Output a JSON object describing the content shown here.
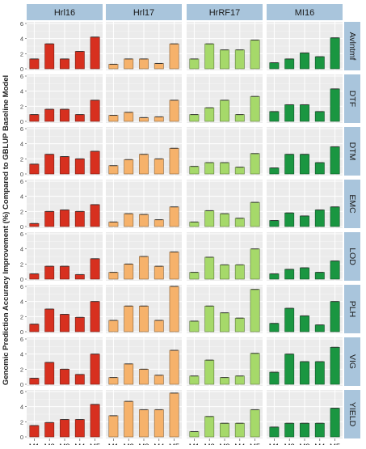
{
  "chart_data": {
    "type": "bar",
    "ylabel": "Genomic Prediction Accuracy Improvement (%) Compared to GBLUP Baseline Model",
    "xlabel": "",
    "ylim": [
      0,
      6
    ],
    "yticks": [
      0,
      2,
      4,
      6
    ],
    "categories": [
      "M1",
      "M2",
      "M3",
      "M4",
      "M5"
    ],
    "columns": [
      "Hrl16",
      "Hrl17",
      "HrRF17",
      "MI16"
    ],
    "rows": [
      "Avlntmf",
      "DTF",
      "DTM",
      "EMC",
      "LOD",
      "PLH",
      "VIG",
      "YIELD"
    ],
    "column_colors": [
      "#d7301f",
      "#f6b26b",
      "#a6d96a",
      "#1a9641"
    ],
    "values": {
      "Hrl16": {
        "Avlntmf": [
          1.3,
          3.3,
          1.3,
          2.3,
          4.2
        ],
        "DTF": [
          0.9,
          1.6,
          1.6,
          0.9,
          2.8
        ],
        "DTM": [
          1.3,
          2.6,
          2.3,
          2.0,
          3.0
        ],
        "EMC": [
          0.4,
          2.0,
          2.2,
          2.0,
          2.9
        ],
        "LOD": [
          0.7,
          1.7,
          1.7,
          0.6,
          2.7
        ],
        "PLH": [
          1.0,
          3.0,
          2.3,
          1.9,
          4.0
        ],
        "VIG": [
          0.8,
          2.9,
          2.0,
          1.3,
          4.0
        ],
        "YIELD": [
          1.5,
          1.9,
          2.3,
          2.3,
          4.3
        ]
      },
      "Hrl17": {
        "Avlntmf": [
          0.6,
          1.3,
          1.3,
          0.7,
          3.3
        ],
        "DTF": [
          0.8,
          1.2,
          0.5,
          0.6,
          2.8
        ],
        "DTM": [
          1.1,
          1.9,
          2.6,
          2.0,
          3.4
        ],
        "EMC": [
          0.6,
          1.7,
          1.6,
          0.9,
          2.6
        ],
        "LOD": [
          0.9,
          2.0,
          3.0,
          1.7,
          3.6
        ],
        "PLH": [
          1.5,
          3.4,
          3.4,
          1.5,
          6.0
        ],
        "VIG": [
          0.9,
          2.7,
          2.0,
          1.2,
          4.5
        ],
        "YIELD": [
          2.8,
          4.7,
          3.6,
          3.6,
          5.8
        ]
      },
      "HrRF17": {
        "Avlntmf": [
          1.3,
          3.3,
          2.5,
          2.5,
          3.8
        ],
        "DTF": [
          0.9,
          1.8,
          2.8,
          0.9,
          3.3
        ],
        "DTM": [
          1.0,
          1.5,
          1.5,
          0.9,
          2.7
        ],
        "EMC": [
          0.6,
          2.1,
          1.7,
          1.1,
          3.2
        ],
        "LOD": [
          0.9,
          2.9,
          1.9,
          1.9,
          4.0
        ],
        "PLH": [
          1.4,
          3.4,
          2.5,
          1.8,
          5.6
        ],
        "VIG": [
          1.1,
          3.2,
          0.9,
          1.1,
          4.1
        ],
        "YIELD": [
          0.7,
          2.7,
          1.8,
          1.8,
          3.6
        ]
      },
      "MI16": {
        "Avlntmf": [
          0.8,
          1.3,
          2.1,
          1.6,
          4.1
        ],
        "DTF": [
          1.3,
          2.2,
          2.2,
          1.3,
          4.3
        ],
        "DTM": [
          0.8,
          2.6,
          2.6,
          1.5,
          3.6
        ],
        "EMC": [
          0.8,
          1.8,
          1.4,
          2.2,
          2.6
        ],
        "LOD": [
          0.7,
          1.3,
          1.5,
          0.9,
          2.4
        ],
        "PLH": [
          1.1,
          3.1,
          2.1,
          0.9,
          4.0
        ],
        "VIG": [
          1.6,
          4.0,
          3.0,
          3.0,
          4.9
        ],
        "YIELD": [
          1.3,
          1.8,
          1.8,
          1.8,
          3.8
        ]
      }
    }
  }
}
